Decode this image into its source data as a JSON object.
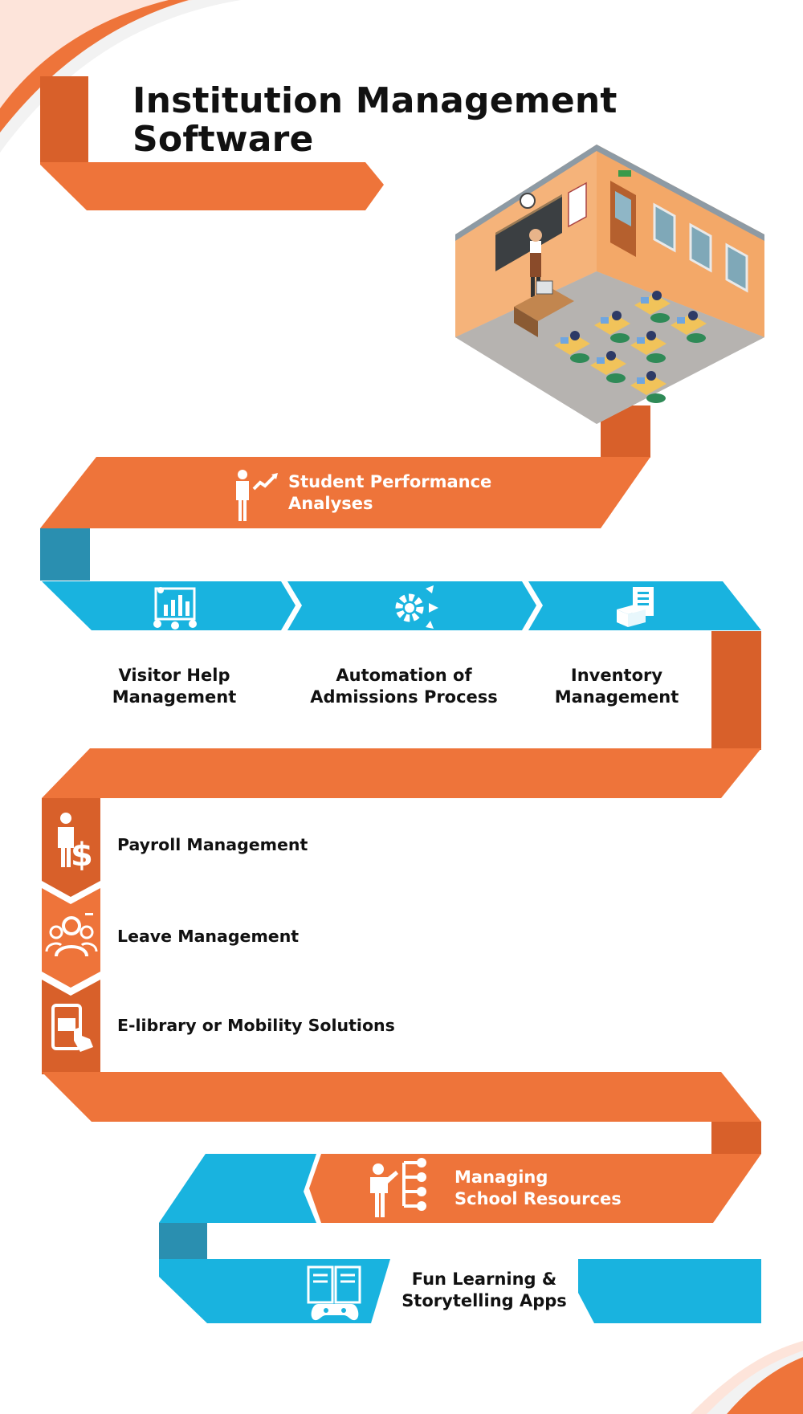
{
  "title": "Institution Management Software",
  "colors": {
    "orange": "#EE743A",
    "orange_dark": "#D8602A",
    "blue": "#19B3DF",
    "blue_dark": "#2A8FB0",
    "text_dark": "#111111",
    "text_light": "#FFFFFF"
  },
  "illustration": "isometric-classroom",
  "items": {
    "student_performance": {
      "line1": "Student Performance",
      "line2": "Analyses",
      "icon": "student-analytics-icon"
    },
    "visitor_help": {
      "line1": "Visitor Help",
      "line2": "Management",
      "icon": "visitor-dashboard-icon"
    },
    "admissions": {
      "line1": "Automation of",
      "line2": "Admissions Process",
      "icon": "gears-automation-icon"
    },
    "inventory": {
      "line1": "Inventory",
      "line2": "Management",
      "icon": "inventory-box-icon"
    },
    "payroll": {
      "label": "Payroll Management",
      "icon": "payroll-dollar-icon"
    },
    "leave": {
      "label": "Leave Management",
      "icon": "leave-people-icon"
    },
    "elibrary": {
      "label": "E-library or Mobility Solutions",
      "icon": "mobile-book-icon"
    },
    "school_resources": {
      "line1": "Managing",
      "line2": "School Resources",
      "icon": "resources-tree-icon"
    },
    "fun_learning": {
      "line1": "Fun Learning &",
      "line2": "Storytelling Apps",
      "icon": "book-gamepad-icon"
    }
  }
}
